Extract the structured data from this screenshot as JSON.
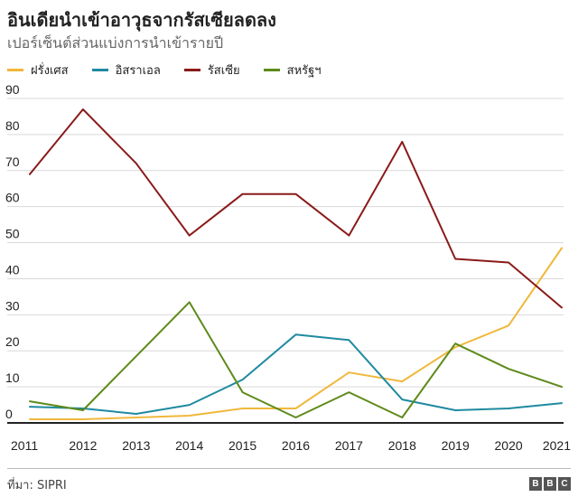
{
  "title": "อินเดียนำเข้าอาวุธจากรัสเซียลดลง",
  "subtitle": "เปอร์เซ็นต์ส่วนแบ่งการนำเข้ารายปี",
  "source": "ที่มา: SIPRI",
  "logo": [
    "B",
    "B",
    "C"
  ],
  "chart_data": {
    "type": "line",
    "title": "อินเดียนำเข้าอาวุธจากรัสเซียลดลง",
    "subtitle": "เปอร์เซ็นต์ส่วนแบ่งการนำเข้ารายปี",
    "xlabel": "",
    "ylabel": "",
    "x": [
      "2011",
      "2012",
      "2013",
      "2014",
      "2015",
      "2016",
      "2017",
      "2018",
      "2019",
      "2020",
      "2021"
    ],
    "yticks": [
      0,
      10,
      20,
      30,
      40,
      50,
      60,
      70,
      80,
      90
    ],
    "ylim": [
      0,
      90
    ],
    "grid": true,
    "legend_position": "top-left",
    "series": [
      {
        "name": "ฝรั่งเศส",
        "color": "#f0b83c",
        "values": [
          1,
          1,
          1.5,
          2,
          4,
          4,
          14,
          11.5,
          21,
          27,
          48.5
        ]
      },
      {
        "name": "อิสราเอล",
        "color": "#1f8aa0",
        "values": [
          4.5,
          4,
          2.5,
          5,
          12,
          24.5,
          23,
          6.5,
          3.5,
          4,
          5.5
        ]
      },
      {
        "name": "รัสเซีย",
        "color": "#8b1a1a",
        "values": [
          69,
          87,
          72,
          52,
          63.5,
          63.5,
          52,
          78,
          45.5,
          44.5,
          32
        ]
      },
      {
        "name": "สหรัฐฯ",
        "color": "#5e8a1a",
        "values": [
          6,
          3.5,
          18.5,
          33.5,
          8.5,
          1.5,
          8.5,
          1.5,
          22,
          15,
          10
        ]
      }
    ]
  }
}
